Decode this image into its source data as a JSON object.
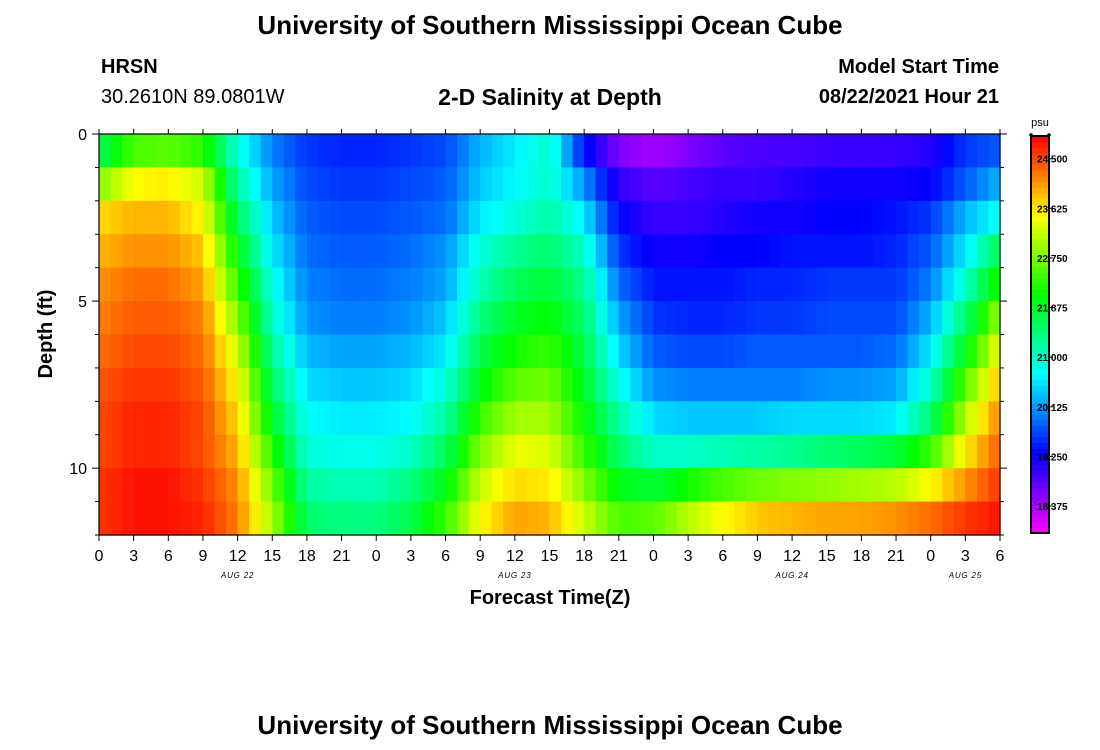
{
  "header": {
    "title": "University of Southern Mississippi Ocean Cube",
    "station": "HRSN",
    "coords": "30.2610N  89.0801W",
    "subtitle": "2-D Salinity at Depth",
    "model_label": "Model Start Time",
    "model_time": "08/22/2021 Hour 21"
  },
  "footer": {
    "title": "University of Southern Mississippi Ocean Cube"
  },
  "chart_data": {
    "type": "heatmap",
    "title": "2-D Salinity at Depth",
    "xlabel": "Forecast Time(Z)",
    "ylabel": "Depth (ft)",
    "x_hours_from_aug22_00z": [
      0,
      78
    ],
    "y_depth_ft": [
      0,
      12
    ],
    "yticks": [
      0,
      5,
      10
    ],
    "xtick_labels": [
      "0",
      "3",
      "6",
      "9",
      "12",
      "15",
      "18",
      "21",
      "0",
      "3",
      "6",
      "9",
      "12",
      "15",
      "18",
      "21",
      "0",
      "3",
      "6",
      "9",
      "12",
      "15",
      "18",
      "21",
      "0",
      "3",
      "6"
    ],
    "day_labels": [
      {
        "label": "AUG 22",
        "hour": 12
      },
      {
        "label": "AUG 23",
        "hour": 36
      },
      {
        "label": "AUG 24",
        "hour": 60
      },
      {
        "label": "AUG 25",
        "hour": 75
      }
    ],
    "colorbar": {
      "unit": "psu",
      "min": 17.9,
      "max": 24.9,
      "tick_values": [
        24.5,
        23.625,
        22.75,
        21.875,
        21.0,
        20.125,
        19.25,
        18.375
      ],
      "tick_labels": [
        "24.500",
        "23.625",
        "22.750",
        "21.875",
        "21.000",
        "20.125",
        "19.250",
        "18.375"
      ]
    },
    "depth_rows_ft": [
      0.5,
      1.5,
      2.5,
      3.5,
      4.5,
      5.5,
      6.5,
      7.5,
      8.5,
      9.5,
      10.5,
      11.5
    ],
    "column_hours": [
      0,
      3,
      6,
      9,
      12,
      15,
      18,
      21,
      24,
      27,
      30,
      33,
      36,
      39,
      42,
      45,
      48,
      51,
      54,
      57,
      60,
      63,
      66,
      69,
      72,
      75,
      78
    ],
    "salinity_psu": [
      [
        21.6,
        22.5,
        22.6,
        22.3,
        20.9,
        20.0,
        19.6,
        19.5,
        19.5,
        19.6,
        19.7,
        20.3,
        20.6,
        21.0,
        19.4,
        18.6,
        18.4,
        18.6,
        18.8,
        18.9,
        18.9,
        19.0,
        19.0,
        19.0,
        19.1,
        19.6,
        19.8
      ],
      [
        22.8,
        23.5,
        23.6,
        23.2,
        21.2,
        20.2,
        19.7,
        19.6,
        19.6,
        19.7,
        19.8,
        20.4,
        20.7,
        21.0,
        20.1,
        19.0,
        18.8,
        18.9,
        19.0,
        19.0,
        19.1,
        19.2,
        19.2,
        19.2,
        19.3,
        19.8,
        20.3
      ],
      [
        23.7,
        23.9,
        23.9,
        23.5,
        21.6,
        20.4,
        19.8,
        19.7,
        19.7,
        19.8,
        19.9,
        20.6,
        20.9,
        21.2,
        20.6,
        19.3,
        19.0,
        19.0,
        19.1,
        19.2,
        19.2,
        19.3,
        19.3,
        19.4,
        19.6,
        20.3,
        20.8
      ],
      [
        23.9,
        24.1,
        24.1,
        23.8,
        22.0,
        20.6,
        19.9,
        19.8,
        19.8,
        19.9,
        20.1,
        20.9,
        21.3,
        21.5,
        21.0,
        19.6,
        19.2,
        19.2,
        19.3,
        19.3,
        19.4,
        19.4,
        19.4,
        19.5,
        19.8,
        20.6,
        21.7
      ],
      [
        24.1,
        24.3,
        24.3,
        24.0,
        22.4,
        20.8,
        20.0,
        19.9,
        19.9,
        20.0,
        20.2,
        21.1,
        21.6,
        21.8,
        21.3,
        19.9,
        19.4,
        19.4,
        19.4,
        19.5,
        19.5,
        19.6,
        19.6,
        19.6,
        20.0,
        21.0,
        22.3
      ],
      [
        24.2,
        24.4,
        24.4,
        24.2,
        22.8,
        21.0,
        20.1,
        20.0,
        20.0,
        20.1,
        20.4,
        21.4,
        21.9,
        22.1,
        21.5,
        20.2,
        19.6,
        19.5,
        19.5,
        19.6,
        19.6,
        19.7,
        19.7,
        19.7,
        20.3,
        21.5,
        23.0
      ],
      [
        24.3,
        24.5,
        24.5,
        24.3,
        23.2,
        21.3,
        20.3,
        20.2,
        20.2,
        20.3,
        20.6,
        21.7,
        22.2,
        22.4,
        21.7,
        20.5,
        19.8,
        19.7,
        19.7,
        19.8,
        19.8,
        19.8,
        19.8,
        19.9,
        20.6,
        22.0,
        23.5
      ],
      [
        24.4,
        24.6,
        24.6,
        24.4,
        23.5,
        21.6,
        20.5,
        20.4,
        20.4,
        20.5,
        20.9,
        22.0,
        22.6,
        22.7,
        21.9,
        20.8,
        20.1,
        20.0,
        20.0,
        20.0,
        20.0,
        20.1,
        20.1,
        20.2,
        21.0,
        22.6,
        23.9
      ],
      [
        24.5,
        24.7,
        24.7,
        24.5,
        23.7,
        21.9,
        20.7,
        20.6,
        20.6,
        20.7,
        21.2,
        22.4,
        23.0,
        23.0,
        22.1,
        21.2,
        20.5,
        20.4,
        20.4,
        20.4,
        20.5,
        20.5,
        20.5,
        20.6,
        21.5,
        23.1,
        24.2
      ],
      [
        24.5,
        24.7,
        24.7,
        24.5,
        23.9,
        22.3,
        20.9,
        20.8,
        20.8,
        21.0,
        21.6,
        22.8,
        23.4,
        23.3,
        22.4,
        21.5,
        21.0,
        21.0,
        21.1,
        21.2,
        21.3,
        21.5,
        21.6,
        21.8,
        22.4,
        23.6,
        24.4
      ],
      [
        24.6,
        24.8,
        24.8,
        24.6,
        24.1,
        22.7,
        21.2,
        21.1,
        21.1,
        21.4,
        22.0,
        23.2,
        23.7,
        23.6,
        22.8,
        22.0,
        21.8,
        22.2,
        22.5,
        22.7,
        22.8,
        22.9,
        23.0,
        23.1,
        23.5,
        24.1,
        24.6
      ],
      [
        24.6,
        24.8,
        24.8,
        24.7,
        24.2,
        23.0,
        21.5,
        21.4,
        21.4,
        21.7,
        22.4,
        23.5,
        24.0,
        23.9,
        23.2,
        22.5,
        22.6,
        23.1,
        23.5,
        23.8,
        23.9,
        24.0,
        24.0,
        24.1,
        24.3,
        24.6,
        24.8
      ]
    ]
  }
}
